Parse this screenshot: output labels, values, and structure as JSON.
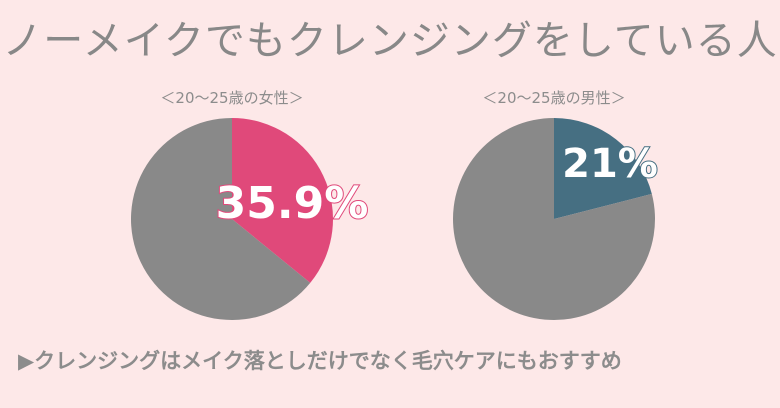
{
  "title": "ノーメイクでもクレンジングをしている人",
  "footer": "▶クレンジングはメイク落としだけでなく毛穴ケアにもおすすめ",
  "colors": {
    "background": "#fde8e8",
    "female_accent": "#e0497a",
    "male_accent": "#466f82",
    "remainder": "#898989",
    "text_gray": "#888888"
  },
  "chart_data": [
    {
      "type": "pie",
      "title": "＜20〜25歳の女性＞",
      "label": "35.9%",
      "slices": [
        {
          "value": 35.9,
          "color": "#e0497a"
        },
        {
          "value": 64.1,
          "color": "#898989"
        }
      ]
    },
    {
      "type": "pie",
      "title": "＜20〜25歳の男性＞",
      "label": "21%",
      "slices": [
        {
          "value": 21,
          "color": "#466f82"
        },
        {
          "value": 79,
          "color": "#898989"
        }
      ]
    }
  ]
}
